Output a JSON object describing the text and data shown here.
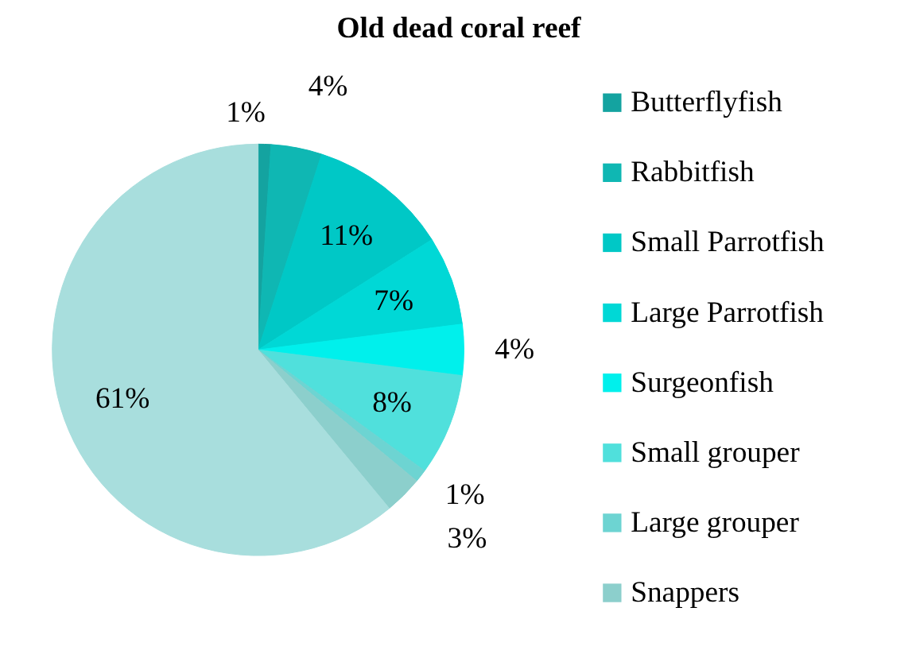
{
  "chart_data": {
    "type": "pie",
    "title": "Old dead coral reef",
    "categories": [
      "Butterflyfish",
      "Rabbitfish",
      "Small Parrotfish",
      "Large Parrotfish",
      "Surgeonfish",
      "Small grouper",
      "Large grouper",
      "Snappers",
      null
    ],
    "values": [
      1,
      4,
      11,
      7,
      4,
      8,
      1,
      3,
      61
    ],
    "colors": [
      "#14a3a0",
      "#0fb7b3",
      "#00c8c6",
      "#00d8d6",
      "#00f0ec",
      "#50e0dc",
      "#6dd4d2",
      "#8ccfcc",
      "#a8dedd"
    ],
    "value_labels": [
      "1%",
      "4%",
      "11%",
      "7%",
      "4%",
      "8%",
      "1%",
      "3%",
      "61%"
    ],
    "legend": "right"
  }
}
